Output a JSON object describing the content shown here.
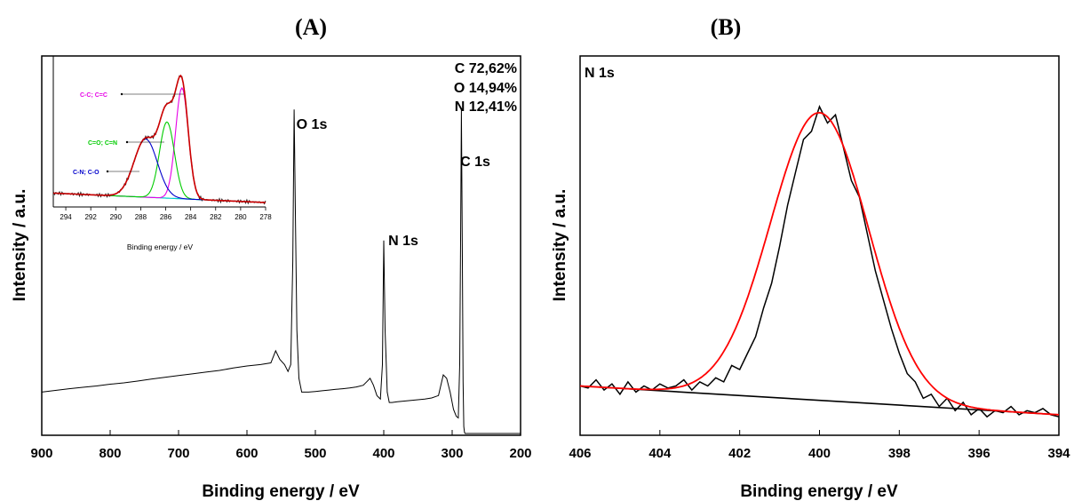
{
  "chart_data": [
    {
      "panel": "(A)",
      "type": "line",
      "xlabel": "Binding energy / eV",
      "ylabel": "Intensity / a.u.",
      "xlim": [
        900,
        200
      ],
      "x_reversed": true,
      "xticks": [
        900,
        800,
        700,
        600,
        500,
        400,
        300,
        200
      ],
      "y_ticks_shown": false,
      "series": [
        {
          "color": "#000000",
          "x": [
            900,
            880,
            860,
            840,
            820,
            800,
            780,
            760,
            740,
            720,
            700,
            680,
            660,
            640,
            620,
            600,
            580,
            565,
            558,
            552,
            545,
            540,
            536,
            533,
            531,
            529,
            527,
            524,
            520,
            510,
            500,
            490,
            480,
            470,
            460,
            450,
            440,
            430,
            425,
            420,
            415,
            410,
            405,
            402,
            400,
            398,
            395,
            392,
            388,
            380,
            370,
            360,
            350,
            340,
            330,
            320,
            313,
            308,
            303,
            298,
            294,
            291,
            289,
            287.5,
            286.5,
            285,
            284,
            283,
            282,
            281,
            278,
            270,
            260,
            250,
            240,
            230,
            220,
            210,
            200
          ],
          "y": [
            0.12,
            0.125,
            0.13,
            0.134,
            0.138,
            0.143,
            0.147,
            0.152,
            0.158,
            0.163,
            0.168,
            0.173,
            0.178,
            0.183,
            0.19,
            0.196,
            0.2,
            0.205,
            0.24,
            0.215,
            0.2,
            0.18,
            0.2,
            0.5,
            0.94,
            0.6,
            0.3,
            0.16,
            0.12,
            0.12,
            0.122,
            0.124,
            0.126,
            0.128,
            0.13,
            0.132,
            0.135,
            0.14,
            0.15,
            0.16,
            0.14,
            0.11,
            0.1,
            0.2,
            0.56,
            0.3,
            0.12,
            0.09,
            0.09,
            0.092,
            0.094,
            0.096,
            0.098,
            0.1,
            0.103,
            0.11,
            0.17,
            0.16,
            0.12,
            0.07,
            0.05,
            0.045,
            0.2,
            0.6,
            0.94,
            0.5,
            0.15,
            0.02,
            0.003,
            0.0,
            0.0,
            0.0,
            0.0,
            0.0,
            0.0,
            0.0,
            0.0,
            0.0,
            0.0
          ]
        }
      ],
      "annotations": [
        {
          "text": "O 1s",
          "x": 530
        },
        {
          "text": "N 1s",
          "x": 400
        },
        {
          "text": "C 1s",
          "x": 285
        }
      ],
      "composition": [
        "C 72,62%",
        "O 14,94%",
        "N 12,41%"
      ],
      "inset": {
        "xlabel": "Binding energy / eV",
        "xlim": [
          295,
          278
        ],
        "x_reversed": true,
        "xticks": [
          294,
          292,
          290,
          288,
          286,
          284,
          282,
          280,
          278
        ],
        "envelope_color": "#cc0000",
        "raw_color": "#222222",
        "background_color": "#00cccc",
        "components": [
          {
            "label": "C-C; C=C",
            "color": "#e600e6",
            "center": 284.7,
            "fwhm": 1.2,
            "height": 0.8
          },
          {
            "label": "C=O; C=N",
            "color": "#00cc00",
            "center": 285.9,
            "fwhm": 1.4,
            "height": 0.55
          },
          {
            "label": "C-N; C-O",
            "color": "#0000cc",
            "center": 287.6,
            "fwhm": 2.2,
            "height": 0.42
          }
        ]
      }
    },
    {
      "panel": "(B)",
      "type": "line",
      "title": "N 1s",
      "xlabel": "Binding energy / eV",
      "ylabel": "Intensity / a.u.",
      "xlim": [
        406,
        394
      ],
      "x_reversed": true,
      "xticks": [
        406,
        404,
        402,
        400,
        398,
        396,
        394
      ],
      "y_ticks_shown": false,
      "peak_center": 400.0,
      "peak_fwhm": 2.9,
      "peak_height": 0.7,
      "baseline": {
        "x": [
          406,
          394
        ],
        "y": [
          0.12,
          0.05
        ]
      },
      "raw_color": "#000000",
      "fit_color": "#ff0000",
      "baseline_color": "#000000",
      "raw": {
        "x": [
          406.0,
          405.8,
          405.6,
          405.4,
          405.2,
          405.0,
          404.8,
          404.6,
          404.4,
          404.2,
          404.0,
          403.8,
          403.6,
          403.4,
          403.2,
          403.0,
          402.8,
          402.6,
          402.4,
          402.2,
          402.0,
          401.8,
          401.6,
          401.4,
          401.2,
          401.0,
          400.8,
          400.6,
          400.4,
          400.2,
          400.0,
          399.8,
          399.6,
          399.4,
          399.2,
          399.0,
          398.8,
          398.6,
          398.4,
          398.2,
          398.0,
          397.8,
          397.6,
          397.4,
          397.2,
          397.0,
          396.8,
          396.6,
          396.4,
          396.2,
          396.0,
          395.8,
          395.6,
          395.4,
          395.2,
          395.0,
          394.8,
          394.6,
          394.4,
          394.2,
          394.0
        ],
        "y": [
          0.12,
          0.115,
          0.135,
          0.11,
          0.125,
          0.1,
          0.13,
          0.105,
          0.12,
          0.11,
          0.125,
          0.115,
          0.12,
          0.135,
          0.11,
          0.13,
          0.12,
          0.14,
          0.13,
          0.17,
          0.16,
          0.2,
          0.24,
          0.31,
          0.37,
          0.46,
          0.56,
          0.64,
          0.72,
          0.74,
          0.8,
          0.76,
          0.78,
          0.7,
          0.62,
          0.58,
          0.49,
          0.4,
          0.33,
          0.26,
          0.2,
          0.15,
          0.13,
          0.09,
          0.1,
          0.07,
          0.09,
          0.06,
          0.08,
          0.05,
          0.065,
          0.045,
          0.06,
          0.055,
          0.07,
          0.05,
          0.06,
          0.055,
          0.065,
          0.05,
          0.045
        ]
      },
      "fit_left_tail": [
        0.125,
        0.13,
        0.12,
        0.125,
        0.12,
        0.125,
        0.12
      ]
    }
  ]
}
